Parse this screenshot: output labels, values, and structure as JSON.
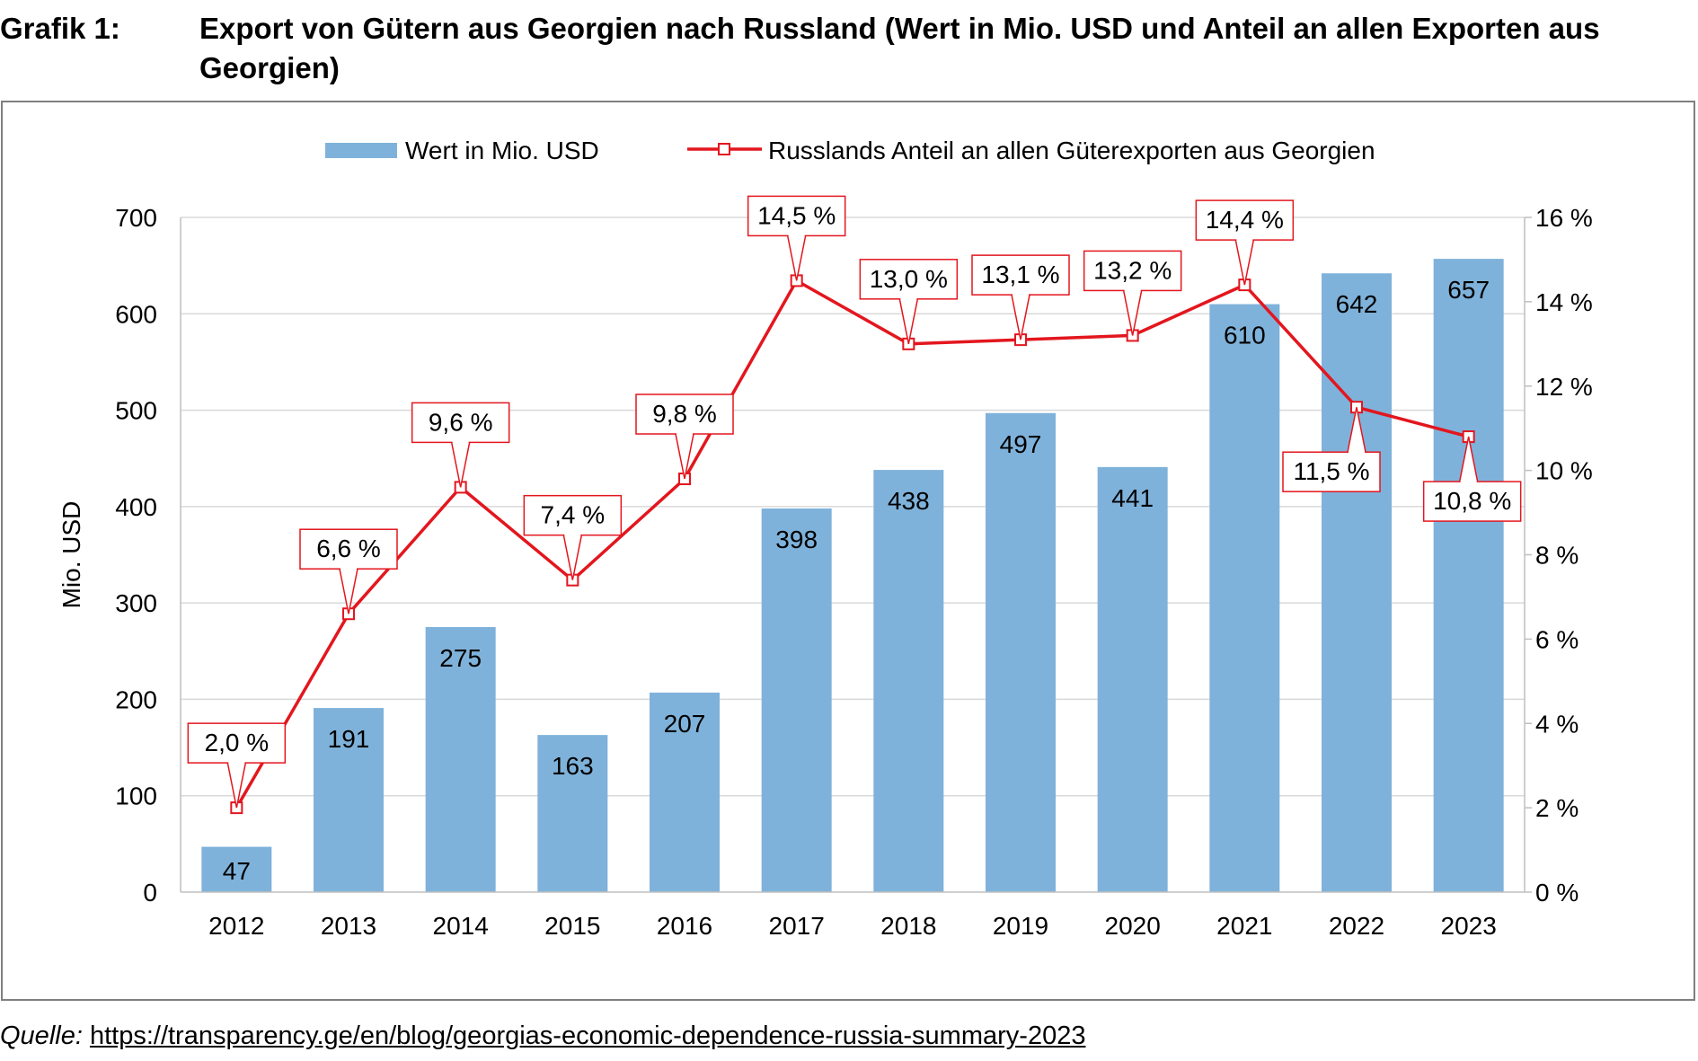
{
  "caption": {
    "number": "Grafik 1:",
    "title": "Export von Gütern aus Georgien nach Russland (Wert in Mio. USD und Anteil an allen Exporten aus Georgien)"
  },
  "source": {
    "label": "Quelle:",
    "url": "https://transparency.ge/en/blog/georgias-economic-dependence-russia-summary-2023"
  },
  "colors": {
    "bar": "#7fb2da",
    "line": "#e3161e",
    "grid": "#d9d9d9",
    "axis": "#bfbfbf"
  },
  "chart_data": {
    "type": "bar",
    "categories": [
      "2012",
      "2013",
      "2014",
      "2015",
      "2016",
      "2017",
      "2018",
      "2019",
      "2020",
      "2021",
      "2022",
      "2023"
    ],
    "ylabel": "Mio. USD",
    "ylim": [
      0,
      700
    ],
    "yticks": [
      0,
      100,
      200,
      300,
      400,
      500,
      600,
      700
    ],
    "y2lim": [
      0,
      16
    ],
    "y2ticks": [
      0,
      2,
      4,
      6,
      8,
      10,
      12,
      14,
      16
    ],
    "y2tick_labels": [
      "0 %",
      "2 %",
      "4 %",
      "6 %",
      "8 %",
      "10 %",
      "12 %",
      "14 %",
      "16 %"
    ],
    "legend_position": "top-center",
    "grid": true,
    "series": [
      {
        "name": "Wert in Mio. USD",
        "type": "bar",
        "axis": "left",
        "values": [
          47,
          191,
          275,
          163,
          207,
          398,
          438,
          497,
          441,
          610,
          642,
          657
        ],
        "labels": [
          "47",
          "191",
          "275",
          "163",
          "207",
          "398",
          "438",
          "497",
          "441",
          "610",
          "642",
          "657"
        ]
      },
      {
        "name": "Russlands Anteil an allen Güterexporten aus Georgien",
        "type": "line",
        "axis": "right",
        "values": [
          2.0,
          6.6,
          9.6,
          7.4,
          9.8,
          14.5,
          13.0,
          13.1,
          13.2,
          14.4,
          11.5,
          10.8
        ],
        "labels": [
          "2,0 %",
          "6,6 %",
          "9,6 %",
          "7,4 %",
          "9,8 %",
          "14,5 %",
          "13,0 %",
          "13,1 %",
          "13,2 %",
          "14,4 %",
          "11,5 %",
          "10,8 %"
        ]
      }
    ]
  }
}
